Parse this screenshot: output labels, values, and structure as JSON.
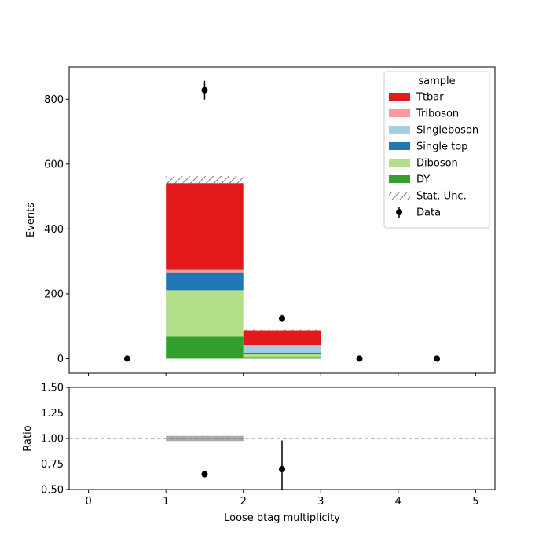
{
  "chart_data": {
    "type": "bar",
    "stacked": true,
    "xlabel": "Loose btag multiplicity",
    "ylabel": "Events",
    "ratio_ylabel": "Ratio",
    "xlim": [
      -0.25,
      5.25
    ],
    "ylim": [
      -45,
      900
    ],
    "ratio_ylim": [
      0.5,
      1.5
    ],
    "xticks": [
      0,
      1,
      2,
      3,
      4,
      5
    ],
    "yticks": [
      0,
      200,
      400,
      600,
      800
    ],
    "ratio_yticks": [
      "0.50",
      "0.75",
      "1.00",
      "1.25",
      "1.50"
    ],
    "ratio_reference": 1.0,
    "bins": [
      [
        0,
        1
      ],
      [
        1,
        2
      ],
      [
        2,
        3
      ],
      [
        3,
        4
      ],
      [
        4,
        5
      ]
    ],
    "legend_title": "sample",
    "legend_loc": "top-right",
    "series": [
      {
        "name": "DY",
        "color": "#33a02c",
        "values": [
          0,
          68,
          5,
          0,
          0
        ]
      },
      {
        "name": "Diboson",
        "color": "#b2df8a",
        "values": [
          0,
          143,
          10,
          0,
          0
        ]
      },
      {
        "name": "Single top",
        "color": "#1f78b4",
        "values": [
          0,
          55,
          3,
          0,
          0
        ]
      },
      {
        "name": "Singleboson",
        "color": "#a6cee3",
        "values": [
          0,
          0,
          24,
          0,
          0
        ]
      },
      {
        "name": "Triboson",
        "color": "#fb9a99",
        "values": [
          0,
          10,
          0,
          0,
          0
        ]
      },
      {
        "name": "Ttbar",
        "color": "#e31a1c",
        "values": [
          0,
          265,
          45,
          0,
          0
        ]
      }
    ],
    "stat_unc": {
      "name": "Stat. Unc.",
      "low": [
        0,
        541,
        87,
        0,
        0
      ],
      "high": [
        0,
        563,
        89,
        0,
        0
      ]
    },
    "data": {
      "name": "Data",
      "x": [
        0.5,
        1.5,
        2.5,
        3.5,
        4.5
      ],
      "y": [
        0,
        828,
        124,
        0,
        0
      ],
      "err": [
        0,
        29,
        11,
        0,
        0
      ]
    },
    "ratio": {
      "x": [
        1.5,
        2.5
      ],
      "y": [
        0.65,
        0.7
      ],
      "err": [
        0.0,
        0.28
      ],
      "unc_band": [
        {
          "x0": 1,
          "x1": 2,
          "low": 0.975,
          "high": 1.025
        }
      ]
    }
  }
}
